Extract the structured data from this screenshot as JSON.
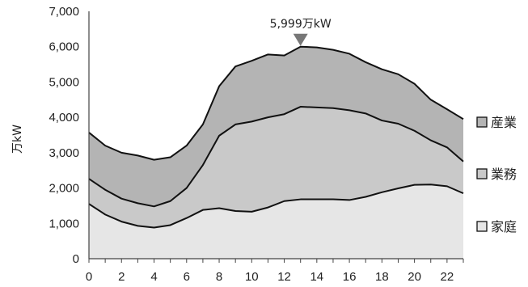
{
  "chart_data": {
    "type": "area",
    "stacked": true,
    "title": "",
    "xlabel": "",
    "ylabel": "万kW",
    "x": [
      0,
      1,
      2,
      3,
      4,
      5,
      6,
      7,
      8,
      9,
      10,
      11,
      12,
      13,
      14,
      15,
      16,
      17,
      18,
      19,
      20,
      21,
      22,
      23
    ],
    "xticks": [
      0,
      2,
      4,
      6,
      8,
      10,
      12,
      14,
      16,
      18,
      20,
      22
    ],
    "xlim": [
      0,
      23
    ],
    "ylim": [
      0,
      7000
    ],
    "yticks": [
      0,
      1000,
      2000,
      3000,
      4000,
      5000,
      6000,
      7000
    ],
    "ytick_labels": [
      "0",
      "1,000",
      "2,000",
      "3,000",
      "4,000",
      "5,000",
      "6,000",
      "7,000"
    ],
    "grid": {
      "horizontal": true,
      "vertical": false
    },
    "legend_position": "right",
    "series": [
      {
        "name": "家庭",
        "color": "#e6e6e6",
        "values": [
          1550,
          1250,
          1050,
          930,
          880,
          950,
          1150,
          1380,
          1430,
          1350,
          1330,
          1450,
          1630,
          1680,
          1680,
          1680,
          1660,
          1750,
          1880,
          1990,
          2090,
          2100,
          2050,
          1850
        ]
      },
      {
        "name": "業務",
        "color": "#c9c9c9",
        "values": [
          710,
          700,
          650,
          640,
          600,
          680,
          850,
          1270,
          2050,
          2450,
          2550,
          2550,
          2460,
          2620,
          2600,
          2580,
          2540,
          2360,
          2030,
          1830,
          1530,
          1250,
          1100,
          900
        ]
      },
      {
        "name": "産業",
        "color": "#b4b4b4",
        "values": [
          1310,
          1250,
          1300,
          1350,
          1320,
          1240,
          1200,
          1150,
          1400,
          1640,
          1720,
          1780,
          1660,
          1700,
          1700,
          1650,
          1600,
          1450,
          1450,
          1400,
          1330,
          1150,
          1080,
          1200
        ]
      }
    ],
    "annotations": [
      {
        "text": "5,999万kW",
        "x": 13,
        "y": 5999,
        "marker": "triangle-down"
      }
    ]
  }
}
